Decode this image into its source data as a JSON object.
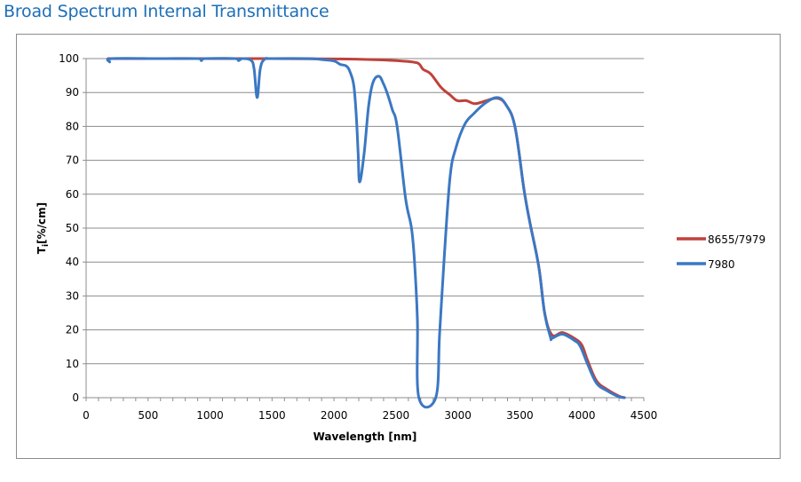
{
  "chart_data": {
    "type": "line",
    "title": "Broad Spectrum Internal Transmittance",
    "xlabel": "Wavelength [nm]",
    "ylabel": "T",
    "ylabel_sub": "i",
    "ylabel_unit": "[%/cm]",
    "xlim": [
      0,
      4500
    ],
    "ylim": [
      0,
      100
    ],
    "xticks": [
      "0",
      "500",
      "1000",
      "1500",
      "2000",
      "2500",
      "3000",
      "3500",
      "4000",
      "4500"
    ],
    "yticks": [
      "0",
      "10",
      "20",
      "30",
      "40",
      "50",
      "60",
      "70",
      "80",
      "90",
      "100"
    ],
    "grid": "horizontal",
    "legend_position": "right",
    "series": [
      {
        "name": "8655/7979",
        "color": "#c0413b",
        "x": [
          177,
          300,
          600,
          1000,
          1500,
          2000,
          2300,
          2500,
          2649,
          2690,
          2720,
          2780,
          2864,
          2936,
          2995,
          3067,
          3138,
          3222,
          3318,
          3389,
          3461,
          3533,
          3580,
          3652,
          3700,
          3759,
          3843,
          3939,
          4000,
          4046,
          4118,
          4201,
          4297,
          4344
        ],
        "y": [
          100,
          100,
          100,
          100,
          100,
          99.9,
          99.7,
          99.4,
          98.9,
          98.3,
          96.8,
          95.5,
          91.5,
          89.3,
          87.6,
          87.6,
          86.7,
          87.5,
          88.3,
          86.3,
          79.8,
          61.4,
          51.8,
          38.7,
          25,
          18.5,
          19.2,
          17.5,
          15.5,
          11,
          5,
          2.5,
          0.5,
          0
        ]
      },
      {
        "name": "7980",
        "color": "#3b78c3",
        "x": [
          190,
          210,
          600,
          900,
          930,
          960,
          1200,
          1230,
          1260,
          1330,
          1355,
          1380,
          1405,
          1440,
          1500,
          1800,
          1900,
          2000,
          2050,
          2100,
          2130,
          2160,
          2180,
          2195,
          2207,
          2243,
          2279,
          2314,
          2362,
          2400,
          2434,
          2470,
          2510,
          2577,
          2625,
          2649,
          2673,
          2685,
          2821,
          2852,
          2888,
          2936,
          2983,
          3055,
          3126,
          3222,
          3318,
          3389,
          3461,
          3533,
          3580,
          3652,
          3700,
          3747,
          3759,
          3843,
          3939,
          3986,
          4046,
          4118,
          4201,
          4297,
          4344
        ],
        "y": [
          99,
          100,
          100,
          100,
          99.4,
          100,
          100,
          99.4,
          100,
          99.5,
          97,
          88.5,
          97,
          99.8,
          100,
          100,
          99.7,
          99.3,
          98.3,
          97.8,
          96,
          92,
          83,
          72,
          63.6,
          72,
          85.9,
          92.9,
          94.8,
          92.5,
          89.3,
          85,
          79.8,
          58.9,
          50.1,
          40.5,
          23,
          0,
          0,
          18.7,
          40.5,
          64.9,
          73.6,
          80.6,
          83.7,
          86.9,
          88.5,
          86.3,
          79.8,
          61.4,
          51.8,
          38.7,
          24.8,
          17.8,
          17.5,
          18.7,
          16.9,
          15.2,
          9.9,
          4.3,
          2.1,
          0.3,
          0
        ]
      }
    ]
  }
}
